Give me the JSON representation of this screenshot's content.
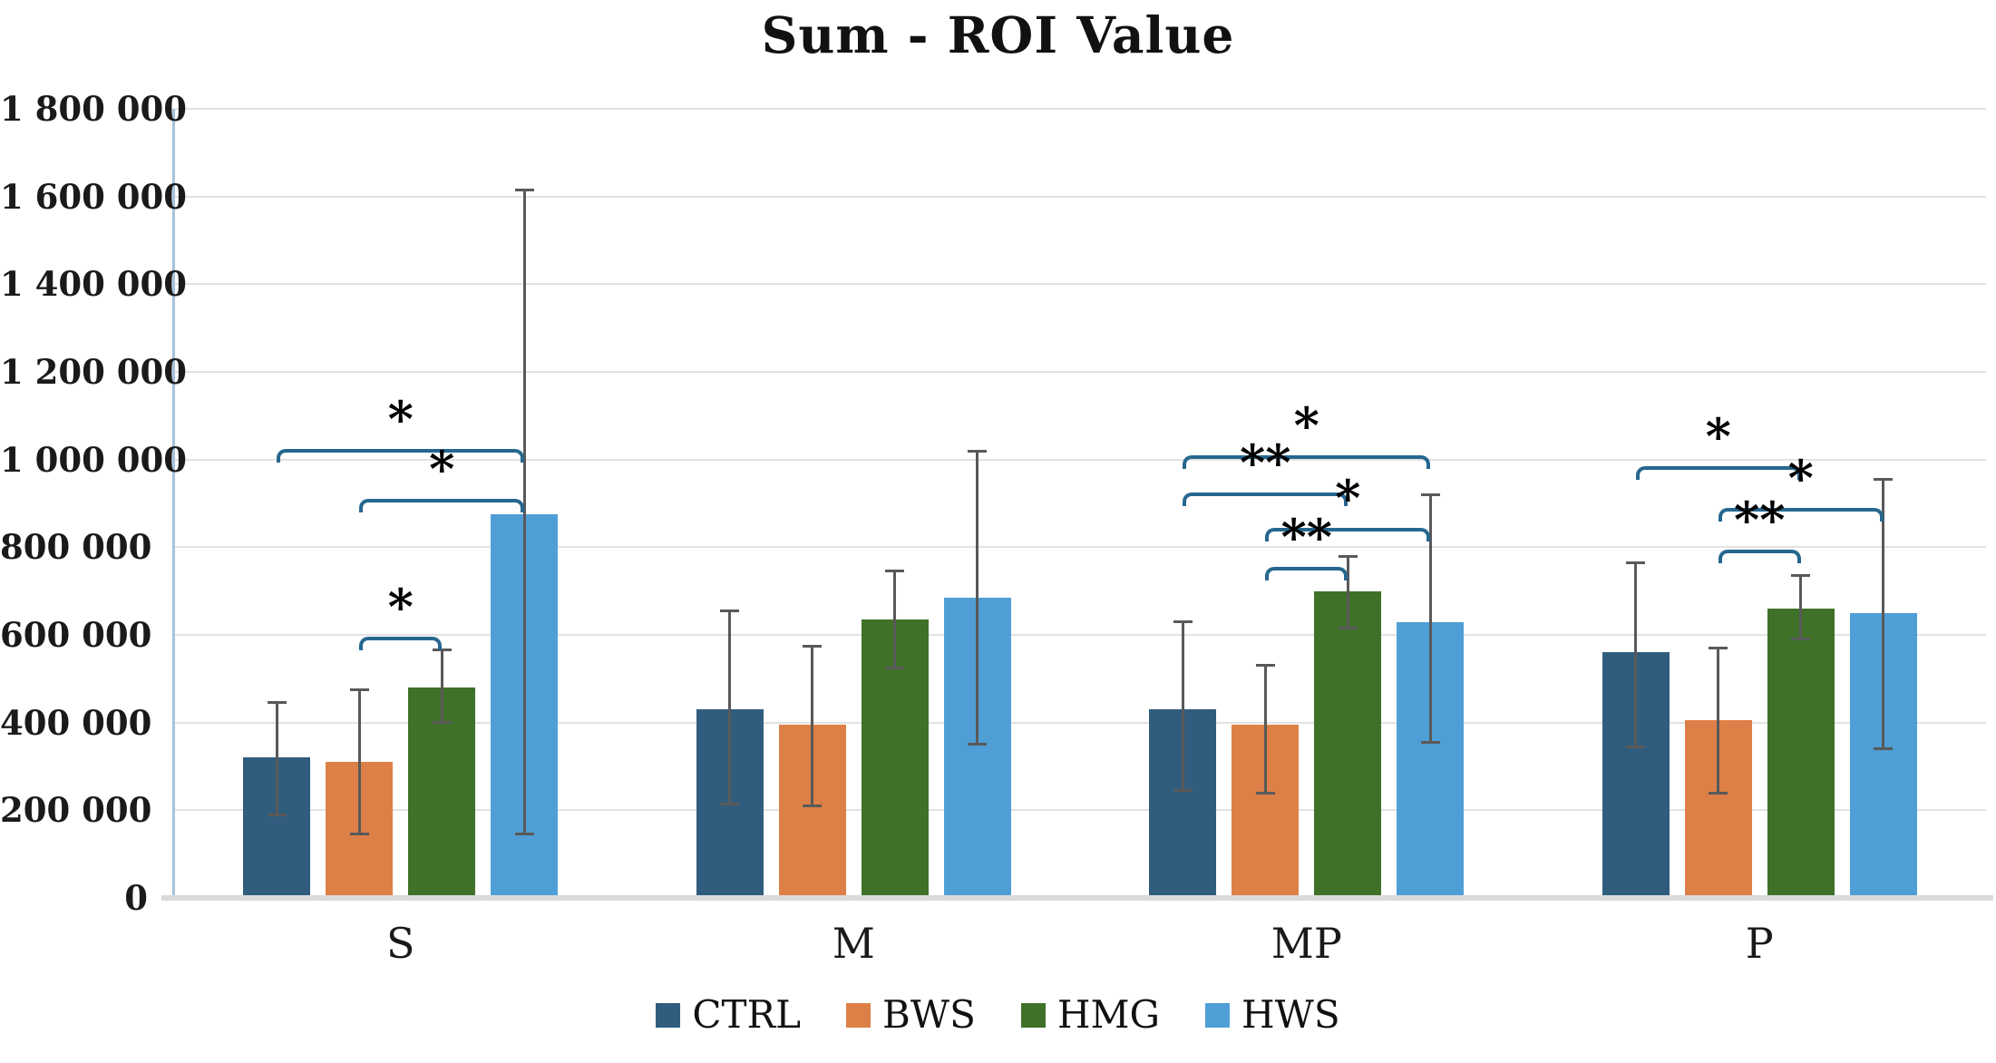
{
  "chart_data": {
    "type": "bar",
    "title": "Sum - ROI Value",
    "categories": [
      "S",
      "M",
      "MP",
      "P"
    ],
    "series": [
      {
        "name": "CTRL",
        "color": "#305d7d",
        "values": [
          320000,
          430000,
          430000,
          560000
        ],
        "error_low": [
          190000,
          215000,
          245000,
          345000
        ],
        "error_high": [
          445000,
          655000,
          630000,
          765000
        ]
      },
      {
        "name": "BWS",
        "color": "#dd8047",
        "values": [
          310000,
          395000,
          395000,
          405000
        ],
        "error_low": [
          145000,
          210000,
          240000,
          240000
        ],
        "error_high": [
          475000,
          575000,
          530000,
          570000
        ]
      },
      {
        "name": "HMG",
        "color": "#3f7128",
        "values": [
          480000,
          635000,
          700000,
          660000
        ],
        "error_low": [
          400000,
          525000,
          615000,
          590000
        ],
        "error_high": [
          565000,
          745000,
          780000,
          735000
        ]
      },
      {
        "name": "HWS",
        "color": "#4f9fd6",
        "values": [
          875000,
          685000,
          630000,
          650000
        ],
        "error_low": [
          145000,
          350000,
          355000,
          340000
        ],
        "error_high": [
          1615000,
          1020000,
          920000,
          955000
        ]
      }
    ],
    "significance_brackets": [
      {
        "category": "S",
        "from": "CTRL",
        "to": "HWS",
        "label": "*",
        "y": 1025000
      },
      {
        "category": "S",
        "from": "BWS",
        "to": "HWS",
        "label": "*",
        "y": 910000
      },
      {
        "category": "S",
        "from": "BWS",
        "to": "HMG",
        "label": "*",
        "y": 595000
      },
      {
        "category": "MP",
        "from": "CTRL",
        "to": "HWS",
        "label": "*",
        "y": 1010000
      },
      {
        "category": "MP",
        "from": "CTRL",
        "to": "HMG",
        "label": "**",
        "y": 925000
      },
      {
        "category": "MP",
        "from": "BWS",
        "to": "HWS",
        "label": "*",
        "y": 845000
      },
      {
        "category": "MP",
        "from": "BWS",
        "to": "HMG",
        "label": "**",
        "y": 755000
      },
      {
        "category": "P",
        "from": "CTRL",
        "to": "HMG",
        "label": "*",
        "y": 985000
      },
      {
        "category": "P",
        "from": "BWS",
        "to": "HWS",
        "label": "*",
        "y": 890000
      },
      {
        "category": "P",
        "from": "BWS",
        "to": "HMG",
        "label": "**",
        "y": 795000
      }
    ],
    "y_axis": {
      "min": 0,
      "max": 1800000,
      "step": 200000,
      "tick_labels": [
        "0",
        "200 000",
        "400 000",
        "600 000",
        "800 000",
        "1 000 000",
        "1 200 000",
        "1 400 000",
        "1 600 000",
        "1 800 000"
      ]
    },
    "x_axis": {
      "tick_labels": [
        "S",
        "M",
        "MP",
        "P"
      ]
    },
    "legend": {
      "position": "bottom",
      "entries": [
        "CTRL",
        "BWS",
        "HMG",
        "HWS"
      ]
    },
    "grid": true,
    "colors": {
      "error_bar": "#595959",
      "bracket": "#26678f",
      "gridline": "#e2e2e2",
      "axis_line": "#a8c3da",
      "baseline": "#dadada",
      "title_text": "#111111"
    }
  }
}
